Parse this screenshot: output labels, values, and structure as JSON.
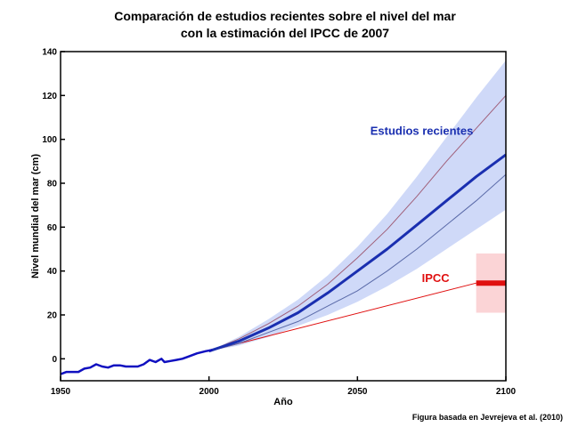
{
  "header": {
    "title_line1": "Comparación de estudios recientes sobre el nivel del mar",
    "title_line2": "con la estimación del IPCC de 2007"
  },
  "footnote": "Figura basada en Jevrejeva et al. (2010)",
  "chart_data": {
    "type": "line",
    "title": "Comparación de estudios recientes sobre el nivel del mar con la estimación del IPCC de 2007",
    "xlabel": "Año",
    "ylabel": "Nivel mundial del mar (cm)",
    "xlim": [
      1950,
      2100
    ],
    "ylim": [
      -10,
      140
    ],
    "xticks": [
      1950,
      2000,
      2050,
      2100
    ],
    "yticks": [
      0,
      20,
      40,
      60,
      80,
      100,
      120,
      140
    ],
    "grid": false,
    "colors": {
      "observed": "#1010c0",
      "recent_central": "#1a2fb0",
      "recent_band": "#cfd9f8",
      "recent_upper": "#a0607a",
      "recent_lower": "#5a6aa8",
      "ipcc": "#e01010",
      "ipcc_band": "#fbd4d6"
    },
    "annotations": [
      {
        "text": "Estudios recientes",
        "x": 2089,
        "y": 102,
        "color": "#1a2fb0"
      },
      {
        "text": "IPCC",
        "x": 2081,
        "y": 35,
        "color": "#e01010"
      }
    ],
    "series": [
      {
        "role": "observed",
        "x": [
          1950,
          1952,
          1954,
          1956,
          1958,
          1960,
          1962,
          1964,
          1966,
          1968,
          1970,
          1972,
          1974,
          1976,
          1978,
          1980,
          1982,
          1984,
          1985,
          1987,
          1989,
          1991,
          1993,
          1996,
          1999,
          2001
        ],
        "values": [
          -7,
          -6,
          -6,
          -6,
          -4.5,
          -4,
          -2.5,
          -3.5,
          -4,
          -3,
          -3,
          -3.5,
          -3.5,
          -3.5,
          -2.5,
          -0.5,
          -1.5,
          0,
          -1.5,
          -1,
          -0.5,
          0,
          1,
          2.5,
          3.5,
          4
        ]
      },
      {
        "name": "Estudios recientes",
        "role": "recent_central",
        "x": [
          2000,
          2010,
          2020,
          2030,
          2040,
          2050,
          2060,
          2070,
          2080,
          2090,
          2100
        ],
        "values": [
          3.5,
          8,
          14,
          21,
          30,
          40,
          50,
          61,
          72,
          83,
          93
        ]
      },
      {
        "role": "recent_upper",
        "x": [
          2000,
          2010,
          2020,
          2030,
          2040,
          2050,
          2060,
          2070,
          2080,
          2090,
          2100
        ],
        "values": [
          3.5,
          9,
          16,
          24,
          34,
          46,
          59,
          74,
          90,
          105,
          120
        ]
      },
      {
        "role": "recent_lower",
        "x": [
          2000,
          2010,
          2020,
          2030,
          2040,
          2050,
          2060,
          2070,
          2080,
          2090,
          2100
        ],
        "values": [
          3.5,
          7,
          12,
          17,
          24,
          31,
          40,
          50,
          61,
          72,
          84
        ]
      },
      {
        "role": "recent_band_upper",
        "x": [
          2000,
          2010,
          2020,
          2030,
          2040,
          2050,
          2060,
          2070,
          2080,
          2090,
          2100
        ],
        "values": [
          3.5,
          10,
          18,
          27,
          38,
          51,
          66,
          83,
          101,
          119,
          136
        ]
      },
      {
        "role": "recent_band_lower",
        "x": [
          2000,
          2010,
          2020,
          2030,
          2040,
          2050,
          2060,
          2070,
          2080,
          2090,
          2100
        ],
        "values": [
          3.5,
          6,
          10,
          15,
          20,
          26,
          33,
          41,
          50,
          59,
          68
        ]
      },
      {
        "name": "IPCC",
        "role": "ipcc",
        "x": [
          2000,
          2090
        ],
        "values": [
          3.5,
          34.5
        ]
      }
    ],
    "ipcc_range": {
      "x": [
        2090,
        2100
      ],
      "central": 34.5,
      "low": 21,
      "high": 48
    }
  }
}
